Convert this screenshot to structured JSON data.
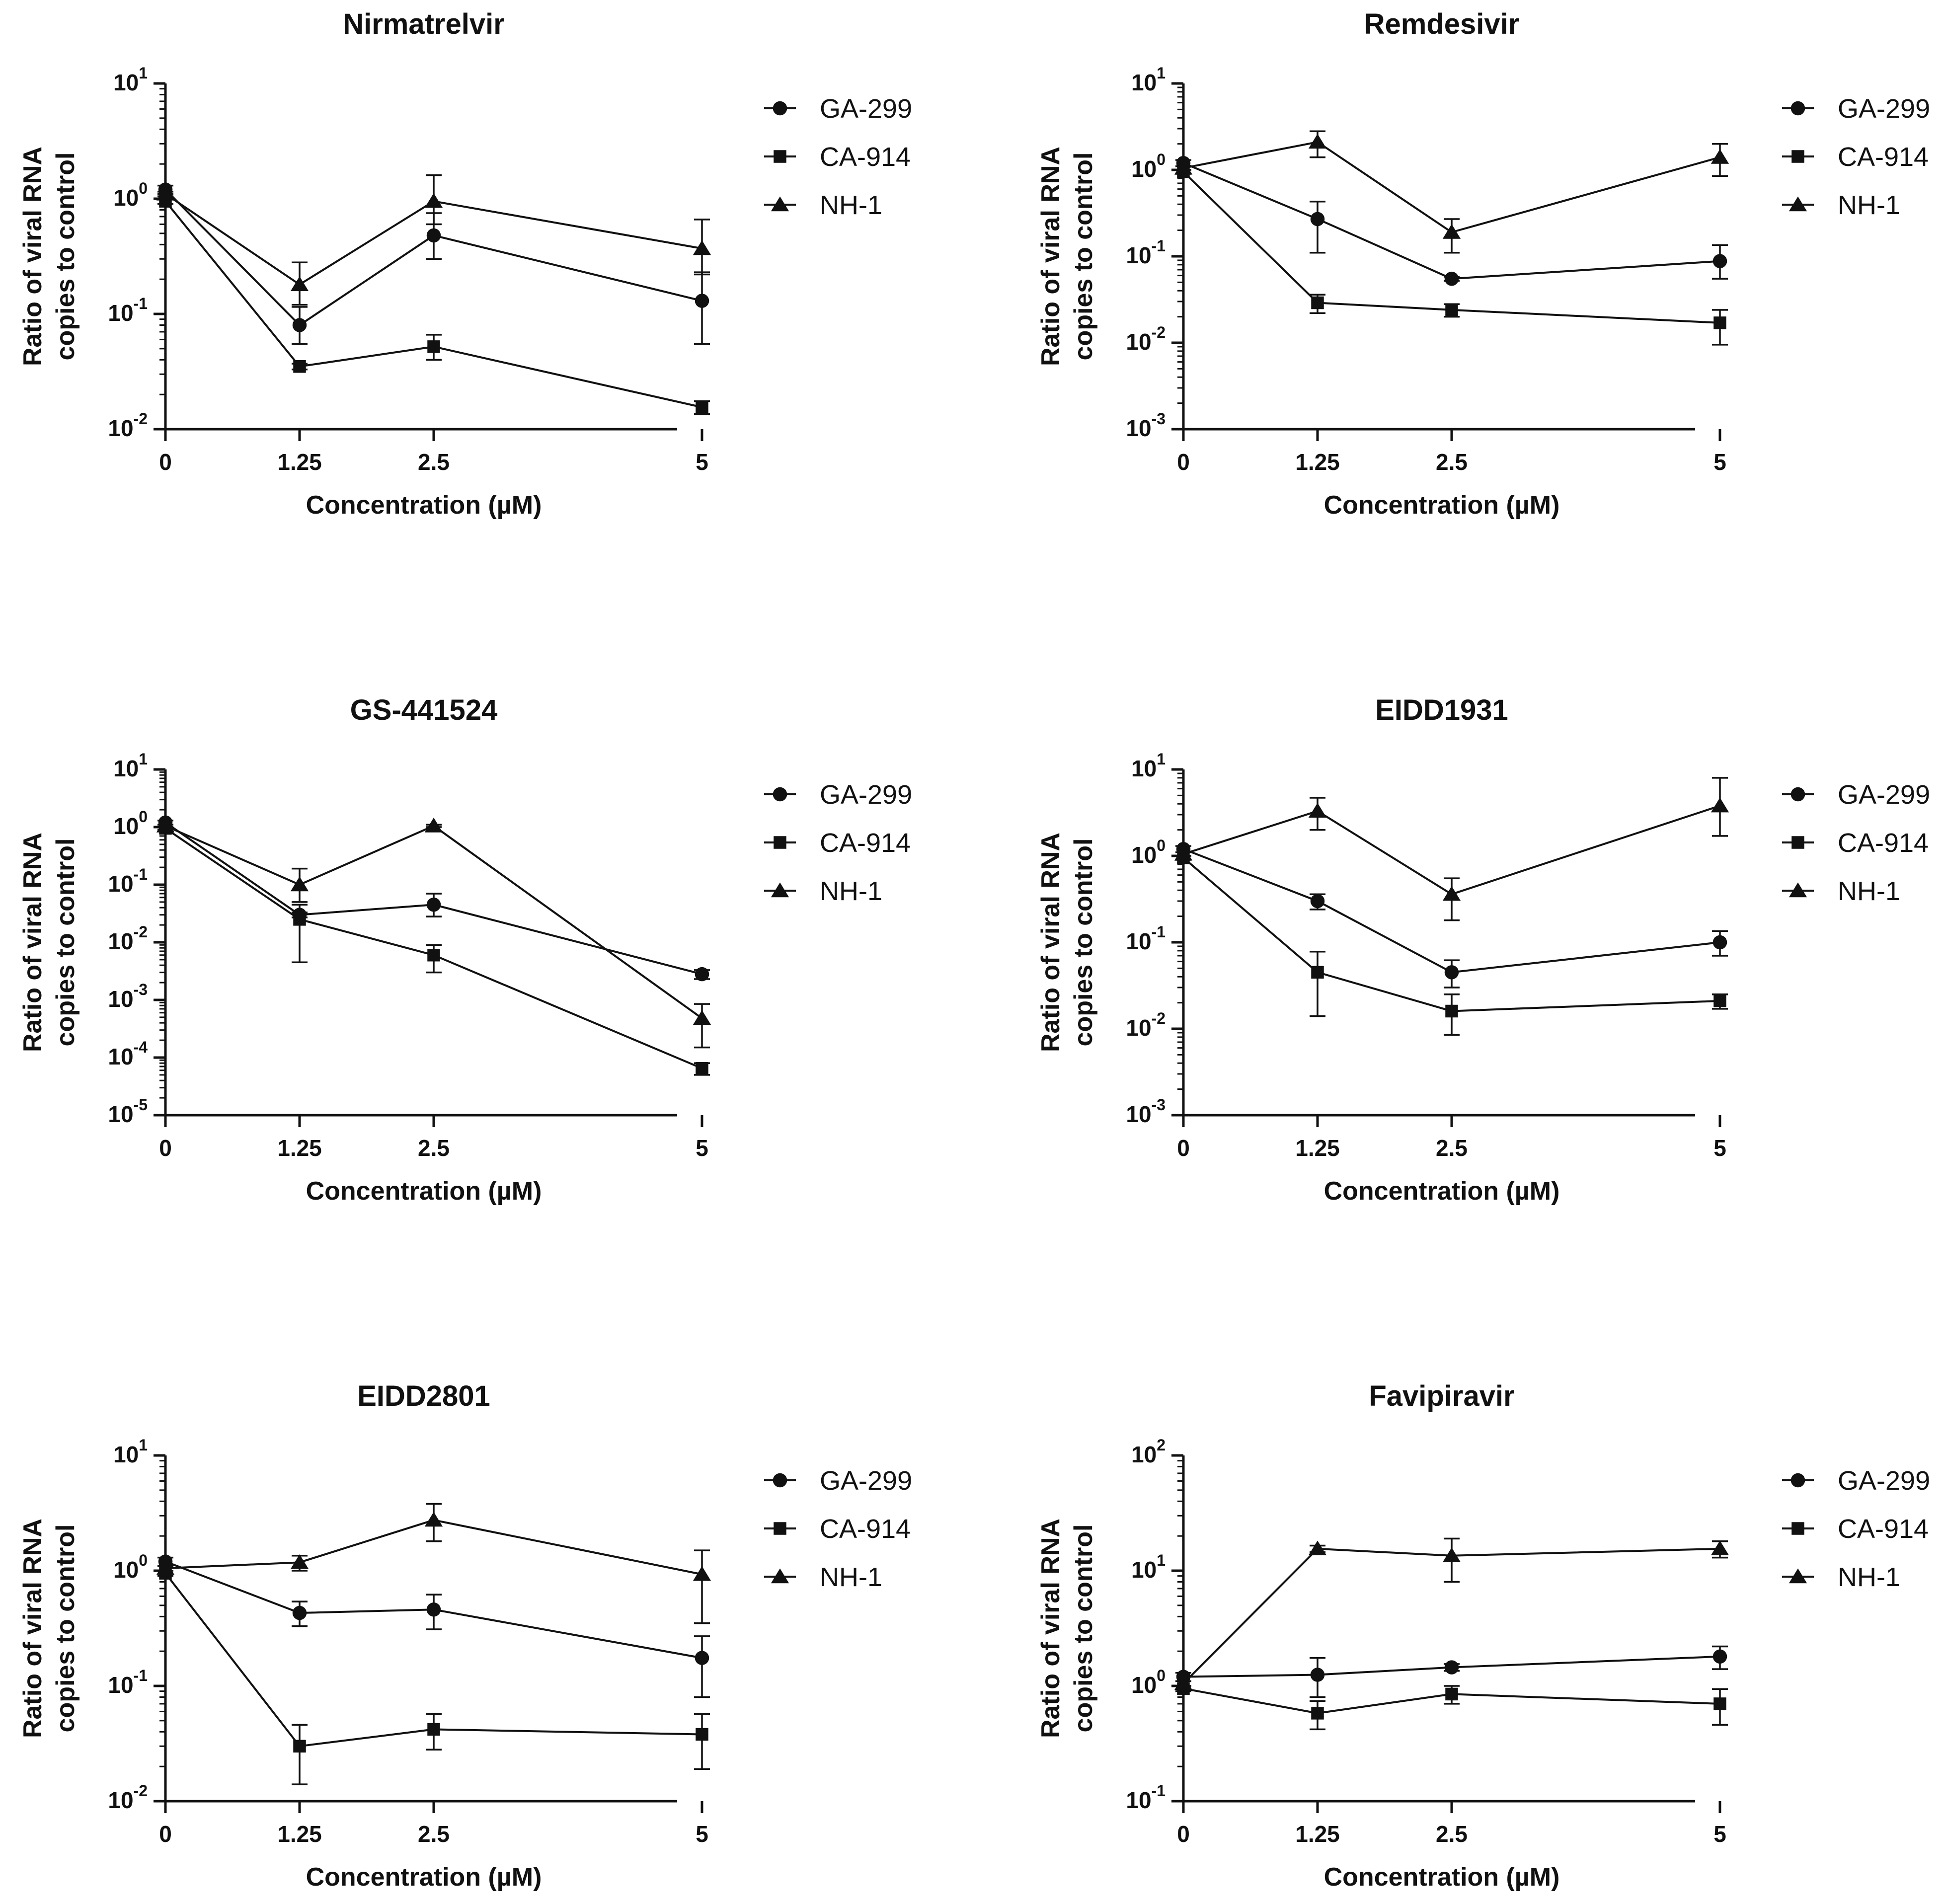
{
  "figure": {
    "charts": [
      {
        "title": "Nirmatrelvir",
        "xlabel": "Concentration (µM)",
        "ylabel_lines": [
          "Ratio of viral RNA",
          "copies to control"
        ],
        "ydecades": [
          -2,
          1
        ],
        "yticks": [
          {
            "base": "10",
            "exp": "-2"
          },
          {
            "base": "10",
            "exp": "-1"
          },
          {
            "base": "10",
            "exp": "0"
          },
          {
            "base": "10",
            "exp": "1"
          }
        ]
      },
      {
        "title": "Remdesivir",
        "xlabel": "Concentration (µM)",
        "ylabel_lines": [
          "Ratio of viral RNA",
          "copies to control"
        ],
        "ydecades": [
          -3,
          1
        ],
        "yticks": [
          {
            "base": "10",
            "exp": "-3"
          },
          {
            "base": "10",
            "exp": "-2"
          },
          {
            "base": "10",
            "exp": "-1"
          },
          {
            "base": "10",
            "exp": "0"
          },
          {
            "base": "10",
            "exp": "1"
          }
        ]
      },
      {
        "title": "GS-441524",
        "xlabel": "Concentration (µM)",
        "ylabel_lines": [
          "Ratio of viral RNA",
          "copies to control"
        ],
        "ydecades": [
          -5,
          1
        ],
        "yticks": [
          {
            "base": "10",
            "exp": "-5"
          },
          {
            "base": "10",
            "exp": "-4"
          },
          {
            "base": "10",
            "exp": "-3"
          },
          {
            "base": "10",
            "exp": "-2"
          },
          {
            "base": "10",
            "exp": "-1"
          },
          {
            "base": "10",
            "exp": "0"
          },
          {
            "base": "10",
            "exp": "1"
          }
        ]
      },
      {
        "title": "EIDD1931",
        "xlabel": "Concentration (µM)",
        "ylabel_lines": [
          "Ratio of viral RNA",
          "copies to control"
        ],
        "ydecades": [
          -3,
          1
        ],
        "yticks": [
          {
            "base": "10",
            "exp": "-3"
          },
          {
            "base": "10",
            "exp": "-2"
          },
          {
            "base": "10",
            "exp": "-1"
          },
          {
            "base": "10",
            "exp": "0"
          },
          {
            "base": "10",
            "exp": "1"
          }
        ]
      },
      {
        "title": "EIDD2801",
        "xlabel": "Concentration (µM)",
        "ylabel_lines": [
          "Ratio of viral RNA",
          "copies to control"
        ],
        "ydecades": [
          -2,
          1
        ],
        "yticks": [
          {
            "base": "10",
            "exp": "-2"
          },
          {
            "base": "10",
            "exp": "-1"
          },
          {
            "base": "10",
            "exp": "0"
          },
          {
            "base": "10",
            "exp": "1"
          }
        ]
      },
      {
        "title": "Favipiravir",
        "xlabel": "Concentration (µM)",
        "ylabel_lines": [
          "Ratio of viral RNA",
          "copies to control"
        ],
        "ydecades": [
          -1,
          2
        ],
        "yticks": [
          {
            "base": "10",
            "exp": "-1"
          },
          {
            "base": "10",
            "exp": "0"
          },
          {
            "base": "10",
            "exp": "1"
          },
          {
            "base": "10",
            "exp": "2"
          }
        ]
      }
    ],
    "colors": {
      "ink": "#111111",
      "background": "#ffffff"
    }
  },
  "chart_data": [
    {
      "type": "line",
      "title": "Nirmatrelvir",
      "xlabel": "Concentration (µM)",
      "ylabel": "Ratio of viral RNA copies to control",
      "yscale": "log",
      "ylim": [
        0.01,
        10
      ],
      "x": [
        0,
        1.25,
        2.5,
        5
      ],
      "xtick_labels": [
        "0",
        "1.25",
        "2.5",
        "5"
      ],
      "legend_position": "right",
      "series": [
        {
          "name": "GA-299",
          "marker": "circle",
          "values": [
            1.2,
            0.08,
            0.48,
            0.13
          ],
          "err_low": [
            1.1,
            0.055,
            0.3,
            0.055
          ],
          "err_high": [
            1.3,
            0.115,
            0.75,
            0.23
          ]
        },
        {
          "name": "CA-914",
          "marker": "square",
          "values": [
            0.95,
            0.035,
            0.052,
            0.0155
          ],
          "err_low": [
            0.9,
            0.033,
            0.04,
            0.0135
          ],
          "err_high": [
            1.0,
            0.037,
            0.066,
            0.0175
          ]
        },
        {
          "name": "NH-1",
          "marker": "triangle",
          "values": [
            1.1,
            0.18,
            0.95,
            0.37
          ],
          "err_low": [
            1.05,
            0.12,
            0.6,
            0.22
          ],
          "err_high": [
            1.15,
            0.28,
            1.6,
            0.66
          ]
        }
      ]
    },
    {
      "type": "line",
      "title": "Remdesivir",
      "xlabel": "Concentration (µM)",
      "ylabel": "Ratio of viral RNA copies to control",
      "yscale": "log",
      "ylim": [
        0.001,
        10
      ],
      "x": [
        0,
        1.25,
        2.5,
        5
      ],
      "xtick_labels": [
        "0",
        "1.25",
        "2.5",
        "5"
      ],
      "legend_position": "right",
      "series": [
        {
          "name": "GA-299",
          "marker": "circle",
          "values": [
            1.2,
            0.27,
            0.055,
            0.088
          ],
          "err_low": [
            1.1,
            0.11,
            0.052,
            0.055
          ],
          "err_high": [
            1.3,
            0.43,
            0.058,
            0.135
          ]
        },
        {
          "name": "CA-914",
          "marker": "square",
          "values": [
            0.95,
            0.029,
            0.024,
            0.017
          ],
          "err_low": [
            0.9,
            0.022,
            0.02,
            0.0095
          ],
          "err_high": [
            1.0,
            0.036,
            0.028,
            0.024
          ]
        },
        {
          "name": "NH-1",
          "marker": "triangle",
          "values": [
            1.05,
            2.1,
            0.19,
            1.4
          ],
          "err_low": [
            1.0,
            1.4,
            0.11,
            0.85
          ],
          "err_high": [
            1.1,
            2.8,
            0.27,
            2.0
          ]
        }
      ]
    },
    {
      "type": "line",
      "title": "GS-441524",
      "xlabel": "Concentration (µM)",
      "ylabel": "Ratio of viral RNA copies to control",
      "yscale": "log",
      "ylim": [
        1e-05,
        10
      ],
      "x": [
        0,
        1.25,
        2.5,
        5
      ],
      "xtick_labels": [
        "0",
        "1.25",
        "2.5",
        "5"
      ],
      "legend_position": "right",
      "series": [
        {
          "name": "GA-299",
          "marker": "circle",
          "values": [
            1.2,
            0.03,
            0.045,
            0.0028
          ],
          "err_low": [
            1.1,
            0.027,
            0.028,
            0.0023
          ],
          "err_high": [
            1.3,
            0.033,
            0.07,
            0.0033
          ]
        },
        {
          "name": "CA-914",
          "marker": "square",
          "values": [
            0.95,
            0.025,
            0.006,
            6.5e-05
          ],
          "err_low": [
            0.9,
            0.0045,
            0.003,
            5e-05
          ],
          "err_high": [
            1.0,
            0.045,
            0.009,
            8e-05
          ]
        },
        {
          "name": "NH-1",
          "marker": "triangle",
          "values": [
            1.05,
            0.1,
            1.05,
            0.00048
          ],
          "err_low": [
            1.0,
            0.05,
            1.0,
            0.00015
          ],
          "err_high": [
            1.1,
            0.19,
            1.1,
            0.00085
          ]
        }
      ]
    },
    {
      "type": "line",
      "title": "EIDD1931",
      "xlabel": "Concentration (µM)",
      "ylabel": "Ratio of viral RNA copies to control",
      "yscale": "log",
      "ylim": [
        0.001,
        10
      ],
      "x": [
        0,
        1.25,
        2.5,
        5
      ],
      "xtick_labels": [
        "0",
        "1.25",
        "2.5",
        "5"
      ],
      "legend_position": "right",
      "series": [
        {
          "name": "GA-299",
          "marker": "circle",
          "values": [
            1.2,
            0.3,
            0.045,
            0.1
          ],
          "err_low": [
            1.1,
            0.24,
            0.03,
            0.07
          ],
          "err_high": [
            1.3,
            0.36,
            0.062,
            0.135
          ]
        },
        {
          "name": "CA-914",
          "marker": "square",
          "values": [
            0.95,
            0.045,
            0.016,
            0.021
          ],
          "err_low": [
            0.9,
            0.014,
            0.0085,
            0.017
          ],
          "err_high": [
            1.0,
            0.078,
            0.025,
            0.025
          ]
        },
        {
          "name": "NH-1",
          "marker": "triangle",
          "values": [
            1.05,
            3.3,
            0.36,
            3.8
          ],
          "err_low": [
            1.0,
            2.0,
            0.18,
            1.7
          ],
          "err_high": [
            1.1,
            4.7,
            0.55,
            8.0
          ]
        }
      ]
    },
    {
      "type": "line",
      "title": "EIDD2801",
      "xlabel": "Concentration (µM)",
      "ylabel": "Ratio of viral RNA copies to control",
      "yscale": "log",
      "ylim": [
        0.01,
        10
      ],
      "x": [
        0,
        1.25,
        2.5,
        5
      ],
      "xtick_labels": [
        "0",
        "1.25",
        "2.5",
        "5"
      ],
      "legend_position": "right",
      "series": [
        {
          "name": "GA-299",
          "marker": "circle",
          "values": [
            1.2,
            0.43,
            0.46,
            0.175
          ],
          "err_low": [
            1.1,
            0.33,
            0.31,
            0.08
          ],
          "err_high": [
            1.3,
            0.54,
            0.62,
            0.27
          ]
        },
        {
          "name": "CA-914",
          "marker": "square",
          "values": [
            0.95,
            0.03,
            0.042,
            0.038
          ],
          "err_low": [
            0.9,
            0.014,
            0.028,
            0.019
          ],
          "err_high": [
            1.0,
            0.046,
            0.057,
            0.057
          ]
        },
        {
          "name": "NH-1",
          "marker": "triangle",
          "values": [
            1.05,
            1.18,
            2.75,
            0.93
          ],
          "err_low": [
            1.0,
            1.0,
            1.8,
            0.35
          ],
          "err_high": [
            1.1,
            1.35,
            3.8,
            1.5
          ]
        }
      ]
    },
    {
      "type": "line",
      "title": "Favipiravir",
      "xlabel": "Concentration (µM)",
      "ylabel": "Ratio of viral RNA copies to control",
      "yscale": "log",
      "ylim": [
        0.1,
        100
      ],
      "x": [
        0,
        1.25,
        2.5,
        5
      ],
      "xtick_labels": [
        "0",
        "1.25",
        "2.5",
        "5"
      ],
      "legend_position": "right",
      "series": [
        {
          "name": "GA-299",
          "marker": "circle",
          "values": [
            1.2,
            1.25,
            1.45,
            1.8
          ],
          "err_low": [
            1.1,
            0.8,
            1.35,
            1.4
          ],
          "err_high": [
            1.3,
            1.75,
            1.55,
            2.2
          ]
        },
        {
          "name": "CA-914",
          "marker": "square",
          "values": [
            0.95,
            0.58,
            0.85,
            0.7
          ],
          "err_low": [
            0.9,
            0.42,
            0.7,
            0.46
          ],
          "err_high": [
            1.0,
            0.74,
            1.0,
            0.94
          ]
        },
        {
          "name": "NH-1",
          "marker": "triangle",
          "values": [
            1.05,
            15.5,
            13.5,
            15.5
          ],
          "err_low": [
            1.0,
            14.5,
            8.0,
            13.0
          ],
          "err_high": [
            1.1,
            16.5,
            19.0,
            18.0
          ]
        }
      ]
    }
  ]
}
